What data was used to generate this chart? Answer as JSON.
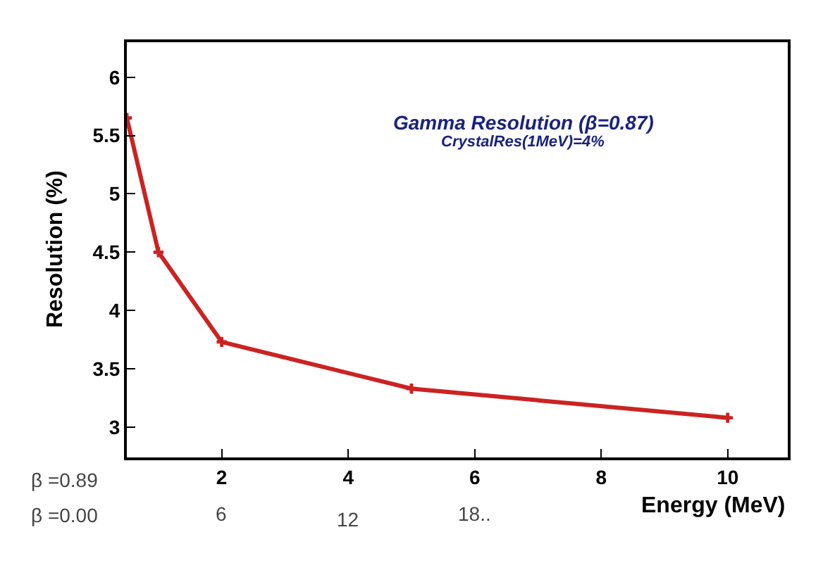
{
  "chart_data": {
    "type": "line",
    "title": "Gamma Resolution (β=0.87)",
    "subtitle": "CrystalRes(1MeV)=4%",
    "xlabel": "Energy (MeV)",
    "ylabel": "Resolution (%)",
    "x": [
      0.5,
      1,
      2,
      5,
      10
    ],
    "series": [
      {
        "color": "#cc2222",
        "values": [
          5.65,
          4.5,
          3.73,
          3.33,
          3.08
        ]
      }
    ],
    "xlim": [
      0.5,
      10.95
    ],
    "xticks": [
      2,
      4,
      6,
      8,
      10
    ],
    "ylim": [
      2.74,
      6.3
    ],
    "yticks": [
      3,
      3.5,
      4,
      4.5,
      5,
      5.5,
      6
    ],
    "annotations": [
      "β =0.89",
      "β =0.00",
      "6",
      "12",
      "18.."
    ],
    "marker": "cross"
  }
}
